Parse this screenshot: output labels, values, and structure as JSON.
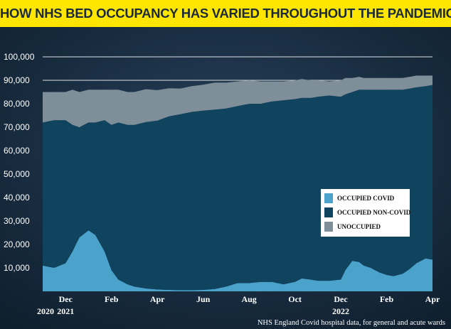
{
  "header": {
    "title": "HOW NHS BED OCCUPANCY HAS VARIED THROUGHOUT THE PANDEMIC"
  },
  "source_note": "NHS England Covid hospital data, for general and acute wards",
  "colors": {
    "banner": "#ffe600",
    "background": "#15283a",
    "occupied_covid": "#4ba3cc",
    "occupied_non_covid": "#10435e",
    "unoccupied": "#7f8f99"
  },
  "chart_data": {
    "type": "area",
    "stacked": true,
    "title": "HOW NHS BED OCCUPANCY HAS VARIED THROUGHOUT THE PANDEMIC",
    "ylim": [
      0,
      100000
    ],
    "yticks": [
      "10,000",
      "20,000",
      "30,000",
      "40,000",
      "50,000",
      "60,000",
      "70,000",
      "80,000",
      "90,000",
      "100,000"
    ],
    "ytick_values": [
      10000,
      20000,
      30000,
      40000,
      50000,
      60000,
      70000,
      80000,
      90000,
      100000
    ],
    "xlim": [
      0,
      17
    ],
    "xticks": [
      {
        "label": "Dec",
        "x": 1
      },
      {
        "label": "Feb",
        "x": 3
      },
      {
        "label": "Apr",
        "x": 5
      },
      {
        "label": "Jun",
        "x": 7
      },
      {
        "label": "Aug",
        "x": 9
      },
      {
        "label": "Oct",
        "x": 11
      },
      {
        "label": "Dec",
        "x": 13
      },
      {
        "label": "Feb",
        "x": 15
      },
      {
        "label": "Apr",
        "x": 17
      }
    ],
    "year_labels": [
      {
        "label": "2020",
        "x": 0
      },
      {
        "label": "2021",
        "x": 1
      },
      {
        "label": "2022",
        "x": 13
      }
    ],
    "grid": {
      "y": true,
      "x": false
    },
    "legend": {
      "position": "right",
      "entries": [
        "OCCUPIED COVID",
        "OCCUPIED NON-COVID",
        "UNOCCUPIED"
      ]
    },
    "x": [
      0,
      0.5,
      1,
      1.3,
      1.6,
      2,
      2.3,
      2.7,
      3,
      3.3,
      3.7,
      4,
      4.5,
      5,
      5.5,
      6,
      6.5,
      7,
      7.5,
      8,
      8.5,
      9,
      9.5,
      10,
      10.5,
      11,
      11.3,
      11.7,
      12,
      12.5,
      13,
      13.2,
      13.5,
      13.8,
      14,
      14.3,
      14.7,
      15,
      15.3,
      15.7,
      16,
      16.3,
      16.7,
      17
    ],
    "series": [
      {
        "name": "OCCUPIED COVID",
        "values": [
          11000,
          10000,
          12000,
          17000,
          23000,
          26000,
          24000,
          17000,
          9000,
          5000,
          3000,
          2000,
          1200,
          800,
          600,
          500,
          500,
          600,
          1000,
          2000,
          3500,
          3500,
          4000,
          4000,
          3000,
          4000,
          5500,
          5000,
          4500,
          4500,
          5000,
          9000,
          13000,
          12500,
          11000,
          10000,
          8000,
          7000,
          6500,
          7500,
          9500,
          12000,
          14000,
          13500
        ]
      },
      {
        "name": "OCCUPIED NON-COVID",
        "values": [
          61000,
          63000,
          61000,
          54000,
          47000,
          46000,
          48000,
          56000,
          62000,
          67000,
          68000,
          69000,
          71000,
          72000,
          74000,
          75000,
          76000,
          76500,
          76500,
          76000,
          75500,
          76500,
          76000,
          77000,
          78500,
          78000,
          77000,
          77500,
          78500,
          79000,
          78000,
          75000,
          72000,
          73500,
          75000,
          76000,
          78000,
          79000,
          79500,
          78500,
          77000,
          75000,
          73500,
          74500
        ]
      },
      {
        "name": "UNOCCUPIED",
        "values": [
          13000,
          12000,
          12000,
          15000,
          15000,
          14000,
          14000,
          13000,
          15000,
          14000,
          14000,
          14000,
          14000,
          13000,
          12000,
          11000,
          11000,
          11000,
          11500,
          11000,
          10500,
          10000,
          9500,
          8500,
          8000,
          8000,
          8000,
          7500,
          7000,
          6000,
          7000,
          7000,
          6000,
          5500,
          5000,
          5000,
          5000,
          5000,
          5000,
          5000,
          5000,
          5000,
          4500,
          4000
        ]
      }
    ]
  }
}
